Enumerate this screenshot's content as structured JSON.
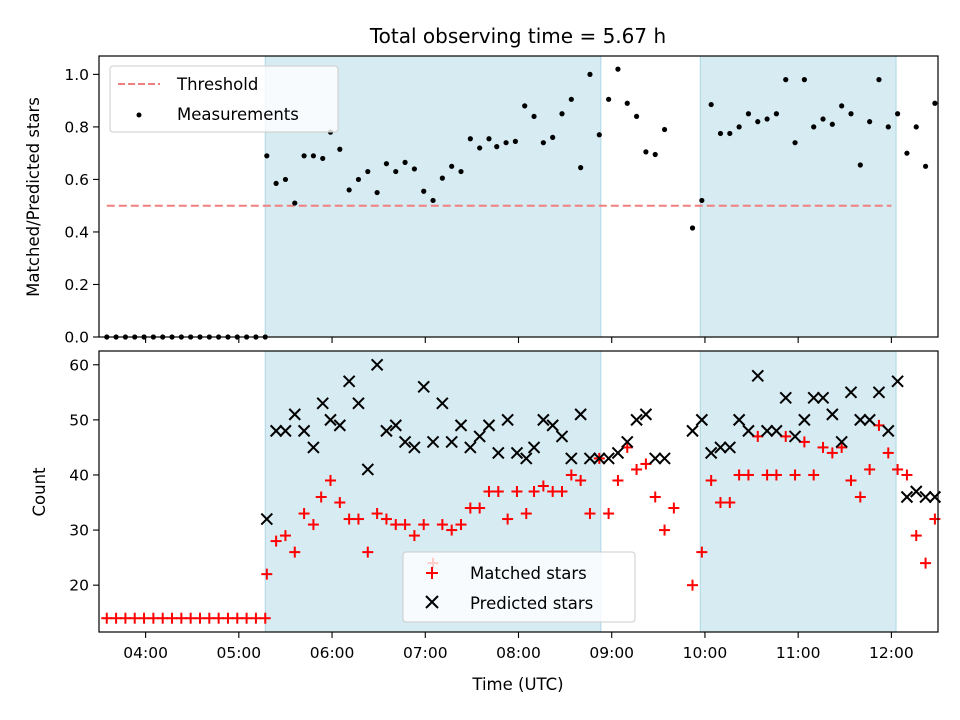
{
  "chart_data": [
    {
      "type": "scatter",
      "title": "Total observing time = 5.67 h",
      "xlabel": "",
      "ylabel": "Matched/Predicted stars",
      "xlim": [
        "03:30",
        "12:30"
      ],
      "ylim": [
        0,
        1.07
      ],
      "yticks": [
        "0.0",
        "0.2",
        "0.4",
        "0.6",
        "0.8",
        "1.0"
      ],
      "legend": {
        "position": "top-left",
        "entries": [
          "Threshold",
          "Measurements"
        ]
      },
      "shaded_intervals": [
        [
          "05:17",
          "08:53"
        ],
        [
          "09:57",
          "12:03"
        ]
      ],
      "threshold": {
        "name": "Threshold",
        "value": 0.5,
        "x_range": [
          "03:35",
          "12:00"
        ],
        "color": "#f08080",
        "style": "dashed"
      },
      "series": [
        {
          "name": "Measurements",
          "color": "#000000",
          "points": [
            [
              "03:35",
              0.0
            ],
            [
              "03:41",
              0.0
            ],
            [
              "03:47",
              0.0
            ],
            [
              "03:53",
              0.0
            ],
            [
              "03:59",
              0.0
            ],
            [
              "04:05",
              0.0
            ],
            [
              "04:11",
              0.0
            ],
            [
              "04:17",
              0.0
            ],
            [
              "04:23",
              0.0
            ],
            [
              "04:29",
              0.0
            ],
            [
              "04:35",
              0.0
            ],
            [
              "04:41",
              0.0
            ],
            [
              "04:47",
              0.0
            ],
            [
              "04:53",
              0.0
            ],
            [
              "04:59",
              0.0
            ],
            [
              "05:05",
              0.0
            ],
            [
              "05:11",
              0.0
            ],
            [
              "05:17",
              0.0
            ],
            [
              "05:18",
              0.69
            ],
            [
              "05:24",
              0.585
            ],
            [
              "05:30",
              0.6
            ],
            [
              "05:36",
              0.51
            ],
            [
              "05:42",
              0.69
            ],
            [
              "05:48",
              0.69
            ],
            [
              "05:54",
              0.68
            ],
            [
              "05:59",
              0.78
            ],
            [
              "06:05",
              0.715
            ],
            [
              "06:11",
              0.56
            ],
            [
              "06:17",
              0.6
            ],
            [
              "06:23",
              0.63
            ],
            [
              "06:29",
              0.55
            ],
            [
              "06:35",
              0.66
            ],
            [
              "06:41",
              0.63
            ],
            [
              "06:47",
              0.665
            ],
            [
              "06:53",
              0.64
            ],
            [
              "06:59",
              0.555
            ],
            [
              "07:05",
              0.52
            ],
            [
              "07:11",
              0.605
            ],
            [
              "07:17",
              0.65
            ],
            [
              "07:23",
              0.63
            ],
            [
              "07:29",
              0.755
            ],
            [
              "07:35",
              0.72
            ],
            [
              "07:41",
              0.755
            ],
            [
              "07:46",
              0.725
            ],
            [
              "07:52",
              0.74
            ],
            [
              "07:58",
              0.745
            ],
            [
              "08:04",
              0.88
            ],
            [
              "08:10",
              0.84
            ],
            [
              "08:16",
              0.74
            ],
            [
              "08:22",
              0.76
            ],
            [
              "08:28",
              0.85
            ],
            [
              "08:34",
              0.905
            ],
            [
              "08:40",
              0.645
            ],
            [
              "08:46",
              1.0
            ],
            [
              "08:52",
              0.77
            ],
            [
              "08:58",
              0.905
            ],
            [
              "09:04",
              1.02
            ],
            [
              "09:10",
              0.89
            ],
            [
              "09:16",
              0.84
            ],
            [
              "09:22",
              0.705
            ],
            [
              "09:28",
              0.695
            ],
            [
              "09:34",
              0.79
            ],
            [
              "09:52",
              0.415
            ],
            [
              "09:58",
              0.52
            ],
            [
              "10:04",
              0.885
            ],
            [
              "10:10",
              0.775
            ],
            [
              "10:16",
              0.775
            ],
            [
              "10:22",
              0.8
            ],
            [
              "10:28",
              0.85
            ],
            [
              "10:34",
              0.82
            ],
            [
              "10:40",
              0.83
            ],
            [
              "10:46",
              0.85
            ],
            [
              "10:52",
              0.98
            ],
            [
              "10:58",
              0.74
            ],
            [
              "11:04",
              0.98
            ],
            [
              "11:10",
              0.8
            ],
            [
              "11:16",
              0.83
            ],
            [
              "11:22",
              0.81
            ],
            [
              "11:28",
              0.88
            ],
            [
              "11:34",
              0.85
            ],
            [
              "11:40",
              0.655
            ],
            [
              "11:46",
              0.82
            ],
            [
              "11:52",
              0.98
            ],
            [
              "11:58",
              0.8
            ],
            [
              "12:04",
              0.85
            ],
            [
              "12:10",
              0.7
            ],
            [
              "12:16",
              0.8
            ],
            [
              "12:22",
              0.65
            ],
            [
              "12:28",
              0.89
            ]
          ]
        }
      ]
    },
    {
      "type": "scatter",
      "title": "",
      "xlabel": "Time (UTC)",
      "ylabel": "Count",
      "xlim": [
        "03:30",
        "12:30"
      ],
      "ylim": [
        11.5,
        62.5
      ],
      "xticks": [
        "04:00",
        "05:00",
        "06:00",
        "07:00",
        "08:00",
        "09:00",
        "10:00",
        "11:00",
        "12:00"
      ],
      "yticks": [
        "20",
        "30",
        "40",
        "50",
        "60"
      ],
      "legend": {
        "position": "lower-center",
        "entries": [
          "Matched stars",
          "Predicted stars"
        ]
      },
      "shaded_intervals": [
        [
          "05:17",
          "08:53"
        ],
        [
          "09:57",
          "12:03"
        ]
      ],
      "series": [
        {
          "name": "Matched stars",
          "marker": "plus",
          "color": "#ff0000",
          "points": [
            [
              "03:35",
              14
            ],
            [
              "03:41",
              14
            ],
            [
              "03:47",
              14
            ],
            [
              "03:53",
              14
            ],
            [
              "03:59",
              14
            ],
            [
              "04:05",
              14
            ],
            [
              "04:11",
              14
            ],
            [
              "04:17",
              14
            ],
            [
              "04:23",
              14
            ],
            [
              "04:29",
              14
            ],
            [
              "04:35",
              14
            ],
            [
              "04:41",
              14
            ],
            [
              "04:47",
              14
            ],
            [
              "04:53",
              14
            ],
            [
              "04:59",
              14
            ],
            [
              "05:05",
              14
            ],
            [
              "05:11",
              14
            ],
            [
              "05:17",
              14
            ],
            [
              "05:18",
              22
            ],
            [
              "05:24",
              28
            ],
            [
              "05:30",
              29
            ],
            [
              "05:36",
              26
            ],
            [
              "05:42",
              33
            ],
            [
              "05:48",
              31
            ],
            [
              "05:53",
              36
            ],
            [
              "05:59",
              39
            ],
            [
              "06:05",
              35
            ],
            [
              "06:11",
              32
            ],
            [
              "06:17",
              32
            ],
            [
              "06:23",
              26
            ],
            [
              "06:29",
              33
            ],
            [
              "06:35",
              32
            ],
            [
              "06:41",
              31
            ],
            [
              "06:47",
              31
            ],
            [
              "06:53",
              29
            ],
            [
              "06:59",
              31
            ],
            [
              "07:05",
              24
            ],
            [
              "07:11",
              31
            ],
            [
              "07:17",
              30
            ],
            [
              "07:23",
              31
            ],
            [
              "07:29",
              34
            ],
            [
              "07:35",
              34
            ],
            [
              "07:41",
              37
            ],
            [
              "07:47",
              37
            ],
            [
              "07:53",
              32
            ],
            [
              "07:59",
              37
            ],
            [
              "08:05",
              33
            ],
            [
              "08:10",
              37
            ],
            [
              "08:16",
              38
            ],
            [
              "08:22",
              37
            ],
            [
              "08:28",
              37
            ],
            [
              "08:34",
              40
            ],
            [
              "08:40",
              39
            ],
            [
              "08:46",
              33
            ],
            [
              "08:52",
              43
            ],
            [
              "08:58",
              33
            ],
            [
              "09:04",
              39
            ],
            [
              "09:10",
              45
            ],
            [
              "09:16",
              41
            ],
            [
              "09:22",
              42
            ],
            [
              "09:28",
              36
            ],
            [
              "09:34",
              30
            ],
            [
              "09:40",
              34
            ],
            [
              "09:52",
              20
            ],
            [
              "09:58",
              26
            ],
            [
              "10:04",
              39
            ],
            [
              "10:10",
              35
            ],
            [
              "10:16",
              35
            ],
            [
              "10:22",
              40
            ],
            [
              "10:28",
              40
            ],
            [
              "10:34",
              47
            ],
            [
              "10:40",
              40
            ],
            [
              "10:46",
              40
            ],
            [
              "10:52",
              47
            ],
            [
              "10:58",
              40
            ],
            [
              "11:04",
              46
            ],
            [
              "11:10",
              40
            ],
            [
              "11:16",
              45
            ],
            [
              "11:22",
              44
            ],
            [
              "11:28",
              45
            ],
            [
              "11:34",
              39
            ],
            [
              "11:40",
              36
            ],
            [
              "11:46",
              41
            ],
            [
              "11:52",
              49
            ],
            [
              "11:58",
              44
            ],
            [
              "12:04",
              41
            ],
            [
              "12:10",
              40
            ],
            [
              "12:16",
              29
            ],
            [
              "12:22",
              24
            ],
            [
              "12:28",
              32
            ]
          ]
        },
        {
          "name": "Predicted stars",
          "marker": "x",
          "color": "#000000",
          "points": [
            [
              "05:18",
              32
            ],
            [
              "05:24",
              48
            ],
            [
              "05:30",
              48
            ],
            [
              "05:36",
              51
            ],
            [
              "05:42",
              48
            ],
            [
              "05:48",
              45
            ],
            [
              "05:54",
              53
            ],
            [
              "05:59",
              50
            ],
            [
              "06:05",
              49
            ],
            [
              "06:11",
              57
            ],
            [
              "06:17",
              53
            ],
            [
              "06:23",
              41
            ],
            [
              "06:29",
              60
            ],
            [
              "06:35",
              48
            ],
            [
              "06:41",
              49
            ],
            [
              "06:47",
              46
            ],
            [
              "06:53",
              45
            ],
            [
              "06:59",
              56
            ],
            [
              "07:05",
              46
            ],
            [
              "07:11",
              53
            ],
            [
              "07:17",
              46
            ],
            [
              "07:23",
              49
            ],
            [
              "07:29",
              45
            ],
            [
              "07:35",
              47
            ],
            [
              "07:41",
              49
            ],
            [
              "07:47",
              44
            ],
            [
              "07:53",
              50
            ],
            [
              "07:59",
              44
            ],
            [
              "08:05",
              43
            ],
            [
              "08:10",
              45
            ],
            [
              "08:16",
              50
            ],
            [
              "08:22",
              49
            ],
            [
              "08:28",
              47
            ],
            [
              "08:34",
              43
            ],
            [
              "08:40",
              51
            ],
            [
              "08:46",
              43
            ],
            [
              "08:52",
              43
            ],
            [
              "08:58",
              43
            ],
            [
              "09:04",
              44
            ],
            [
              "09:10",
              46
            ],
            [
              "09:16",
              50
            ],
            [
              "09:22",
              51
            ],
            [
              "09:28",
              43
            ],
            [
              "09:34",
              43
            ],
            [
              "09:52",
              48
            ],
            [
              "09:58",
              50
            ],
            [
              "10:04",
              44
            ],
            [
              "10:10",
              45
            ],
            [
              "10:16",
              45
            ],
            [
              "10:22",
              50
            ],
            [
              "10:28",
              48
            ],
            [
              "10:34",
              58
            ],
            [
              "10:40",
              48
            ],
            [
              "10:46",
              48
            ],
            [
              "10:52",
              54
            ],
            [
              "10:58",
              47
            ],
            [
              "11:04",
              50
            ],
            [
              "11:10",
              54
            ],
            [
              "11:16",
              54
            ],
            [
              "11:22",
              51
            ],
            [
              "11:28",
              46
            ],
            [
              "11:34",
              55
            ],
            [
              "11:40",
              50
            ],
            [
              "11:46",
              50
            ],
            [
              "11:52",
              55
            ],
            [
              "11:58",
              48
            ],
            [
              "12:04",
              57
            ],
            [
              "12:10",
              36
            ],
            [
              "12:16",
              37
            ],
            [
              "12:22",
              36
            ],
            [
              "12:28",
              36
            ]
          ]
        }
      ]
    }
  ],
  "colors": {
    "shade": "#add8e6",
    "threshold": "#f08080",
    "matched": "#ff0000",
    "predicted": "#000000",
    "measurement": "#000000"
  }
}
